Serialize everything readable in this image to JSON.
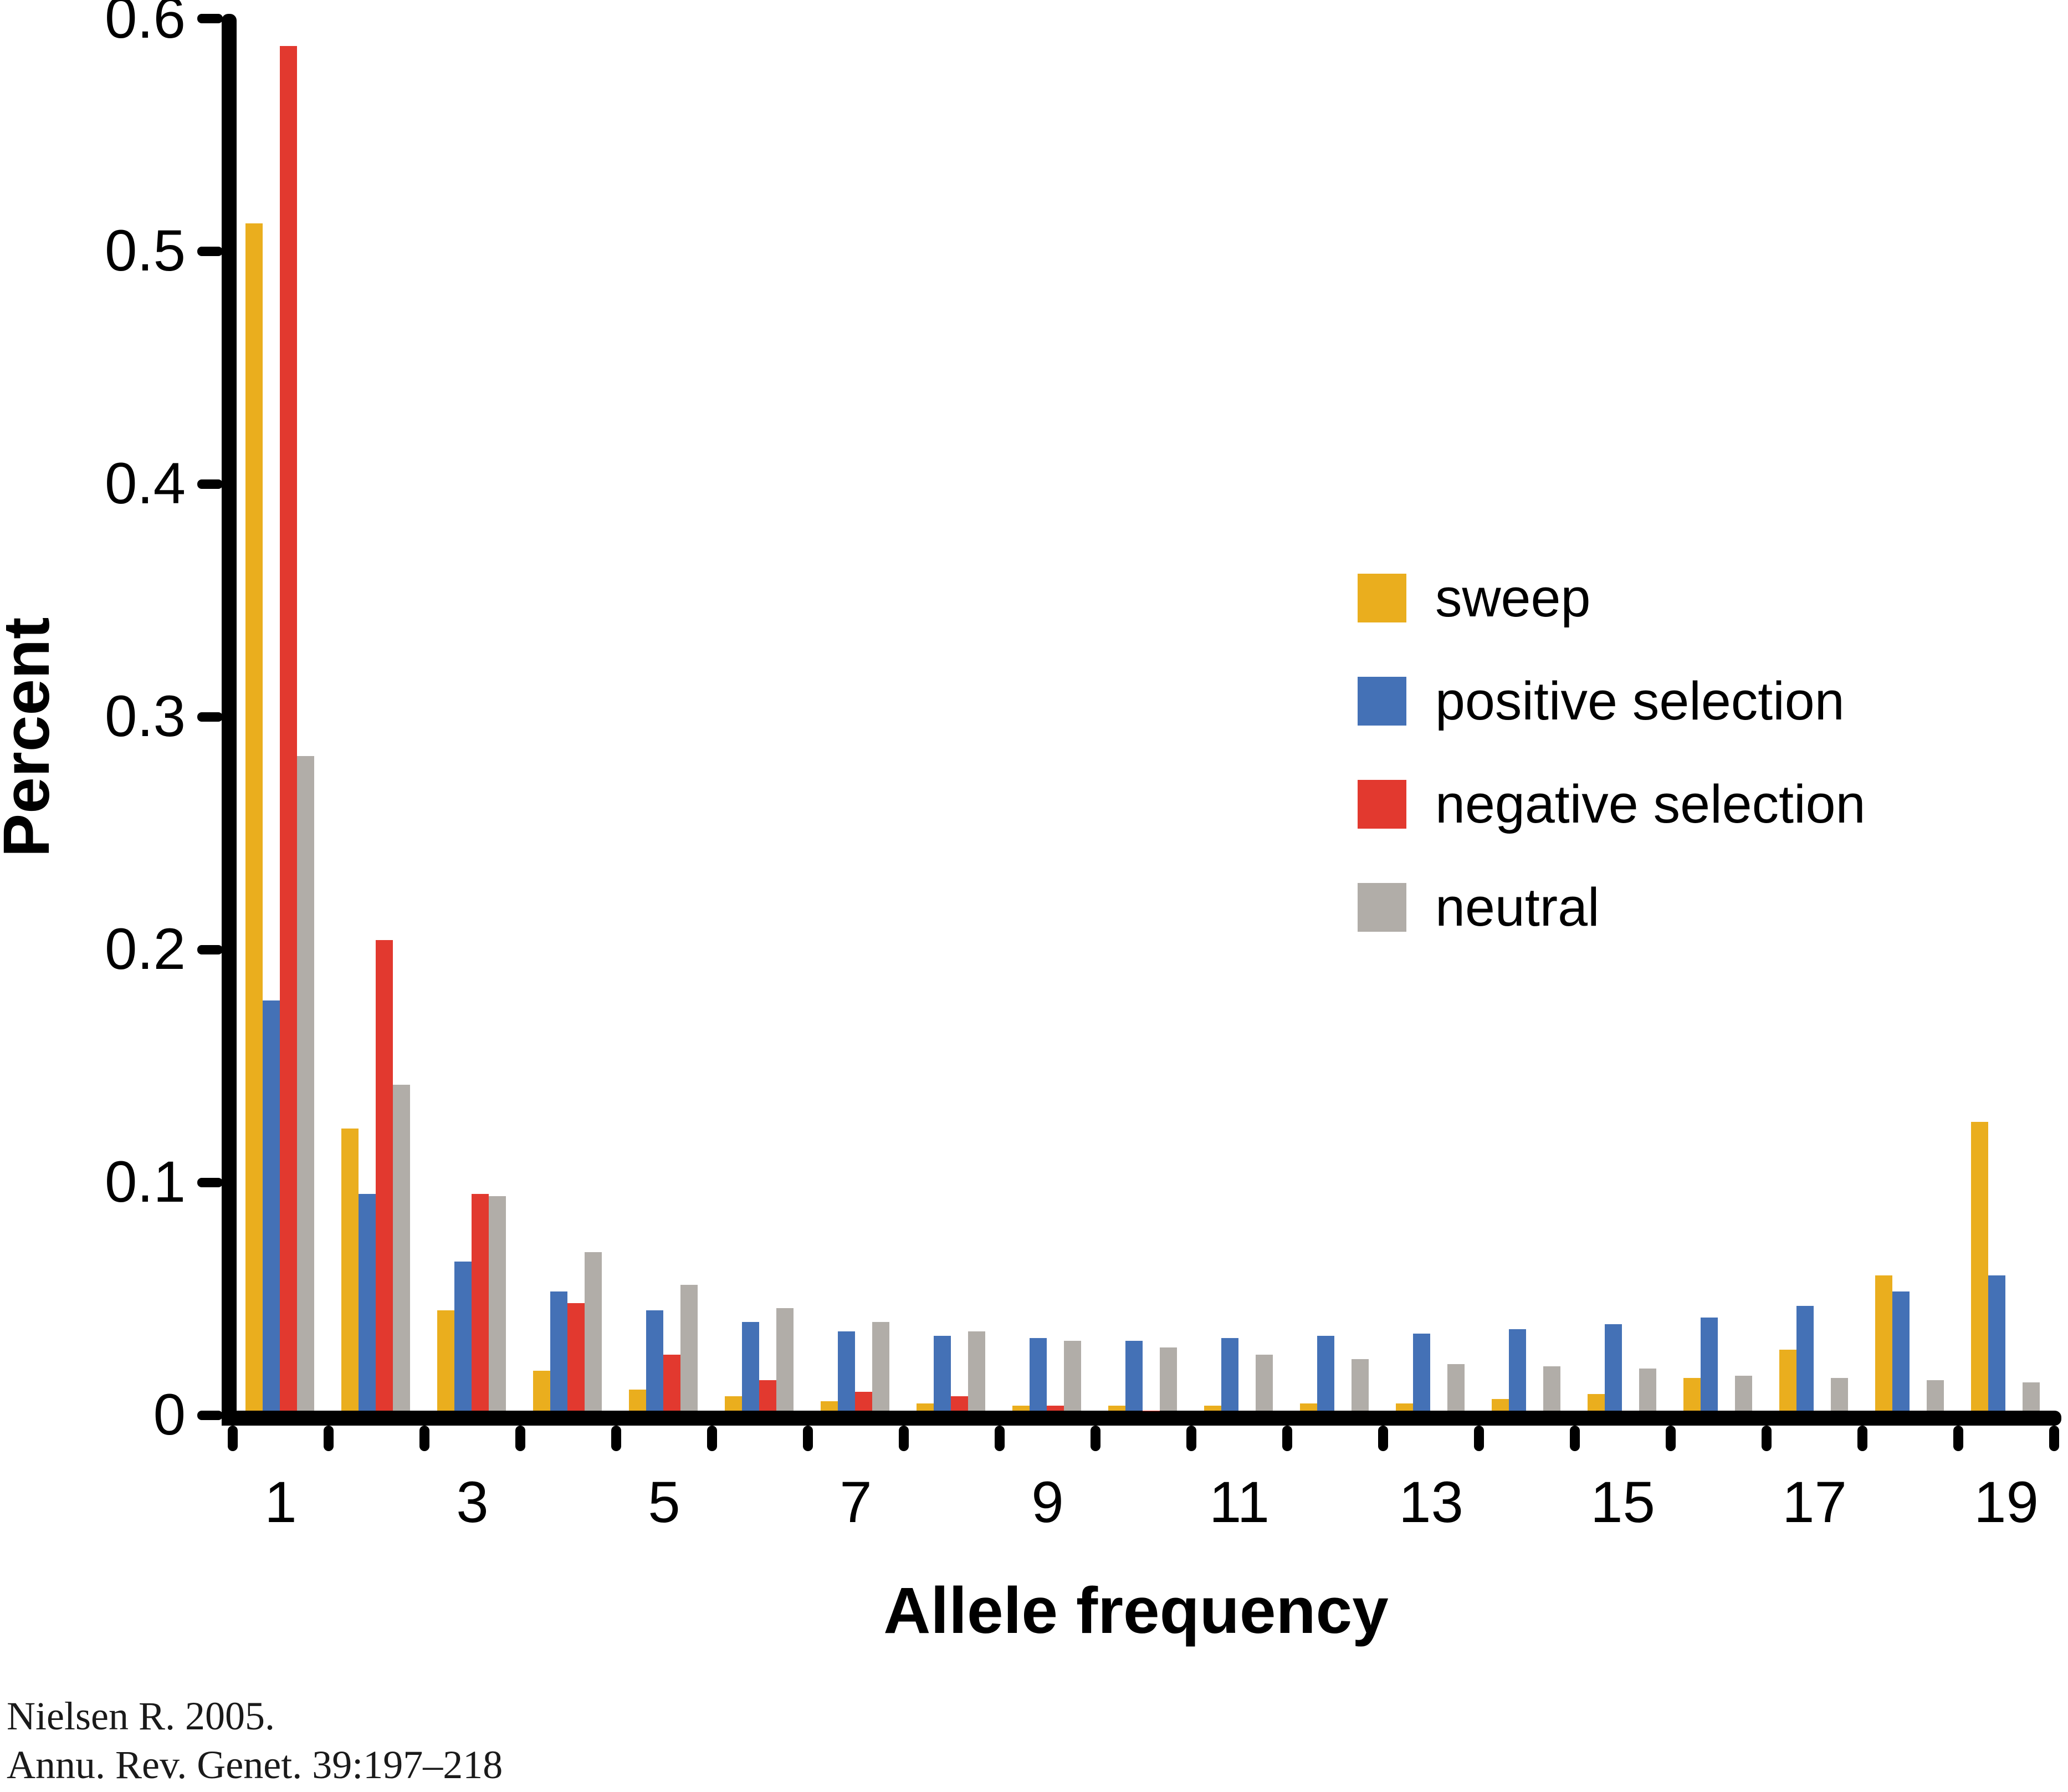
{
  "citation": {
    "line1": "Nielsen R. 2005.",
    "line2": "Annu. Rev. Genet. 39:197–218"
  },
  "chart_data": {
    "type": "bar",
    "title": "",
    "xlabel": "Allele frequency",
    "ylabel": "Percent",
    "categories": [
      1,
      2,
      3,
      4,
      5,
      6,
      7,
      8,
      9,
      10,
      11,
      12,
      13,
      14,
      15,
      16,
      17,
      18,
      19
    ],
    "x_tick_labels": [
      "1",
      "3",
      "5",
      "7",
      "9",
      "11",
      "13",
      "15",
      "17",
      "19"
    ],
    "y_tick_labels": [
      "0",
      "0.1",
      "0.2",
      "0.3",
      "0.4",
      "0.5",
      "0.6"
    ],
    "y_tick_values": [
      0,
      0.1,
      0.2,
      0.3,
      0.4,
      0.5,
      0.6
    ],
    "ylim": [
      0,
      0.6
    ],
    "grid": false,
    "legend_position": "center-right",
    "series": [
      {
        "name": "sweep",
        "color": "#EAAE1E",
        "values": [
          0.512,
          0.123,
          0.045,
          0.019,
          0.011,
          0.008,
          0.006,
          0.005,
          0.004,
          0.004,
          0.004,
          0.005,
          0.005,
          0.007,
          0.009,
          0.016,
          0.028,
          0.06,
          0.126
        ]
      },
      {
        "name": "positive selection",
        "color": "#4471B6",
        "values": [
          0.178,
          0.095,
          0.066,
          0.053,
          0.045,
          0.04,
          0.036,
          0.034,
          0.033,
          0.032,
          0.033,
          0.034,
          0.035,
          0.037,
          0.039,
          0.042,
          0.047,
          0.053,
          0.06
        ]
      },
      {
        "name": "negative selection",
        "color": "#E2392F",
        "values": [
          0.588,
          0.204,
          0.095,
          0.048,
          0.026,
          0.015,
          0.01,
          0.008,
          0.004,
          0.002,
          0,
          0,
          0,
          0,
          0,
          0,
          0,
          0,
          0
        ]
      },
      {
        "name": "neutral",
        "color": "#B1ADA8",
        "values": [
          0.283,
          0.142,
          0.094,
          0.07,
          0.056,
          0.046,
          0.04,
          0.036,
          0.032,
          0.029,
          0.026,
          0.024,
          0.022,
          0.021,
          0.02,
          0.017,
          0.016,
          0.015,
          0.014
        ]
      }
    ]
  }
}
